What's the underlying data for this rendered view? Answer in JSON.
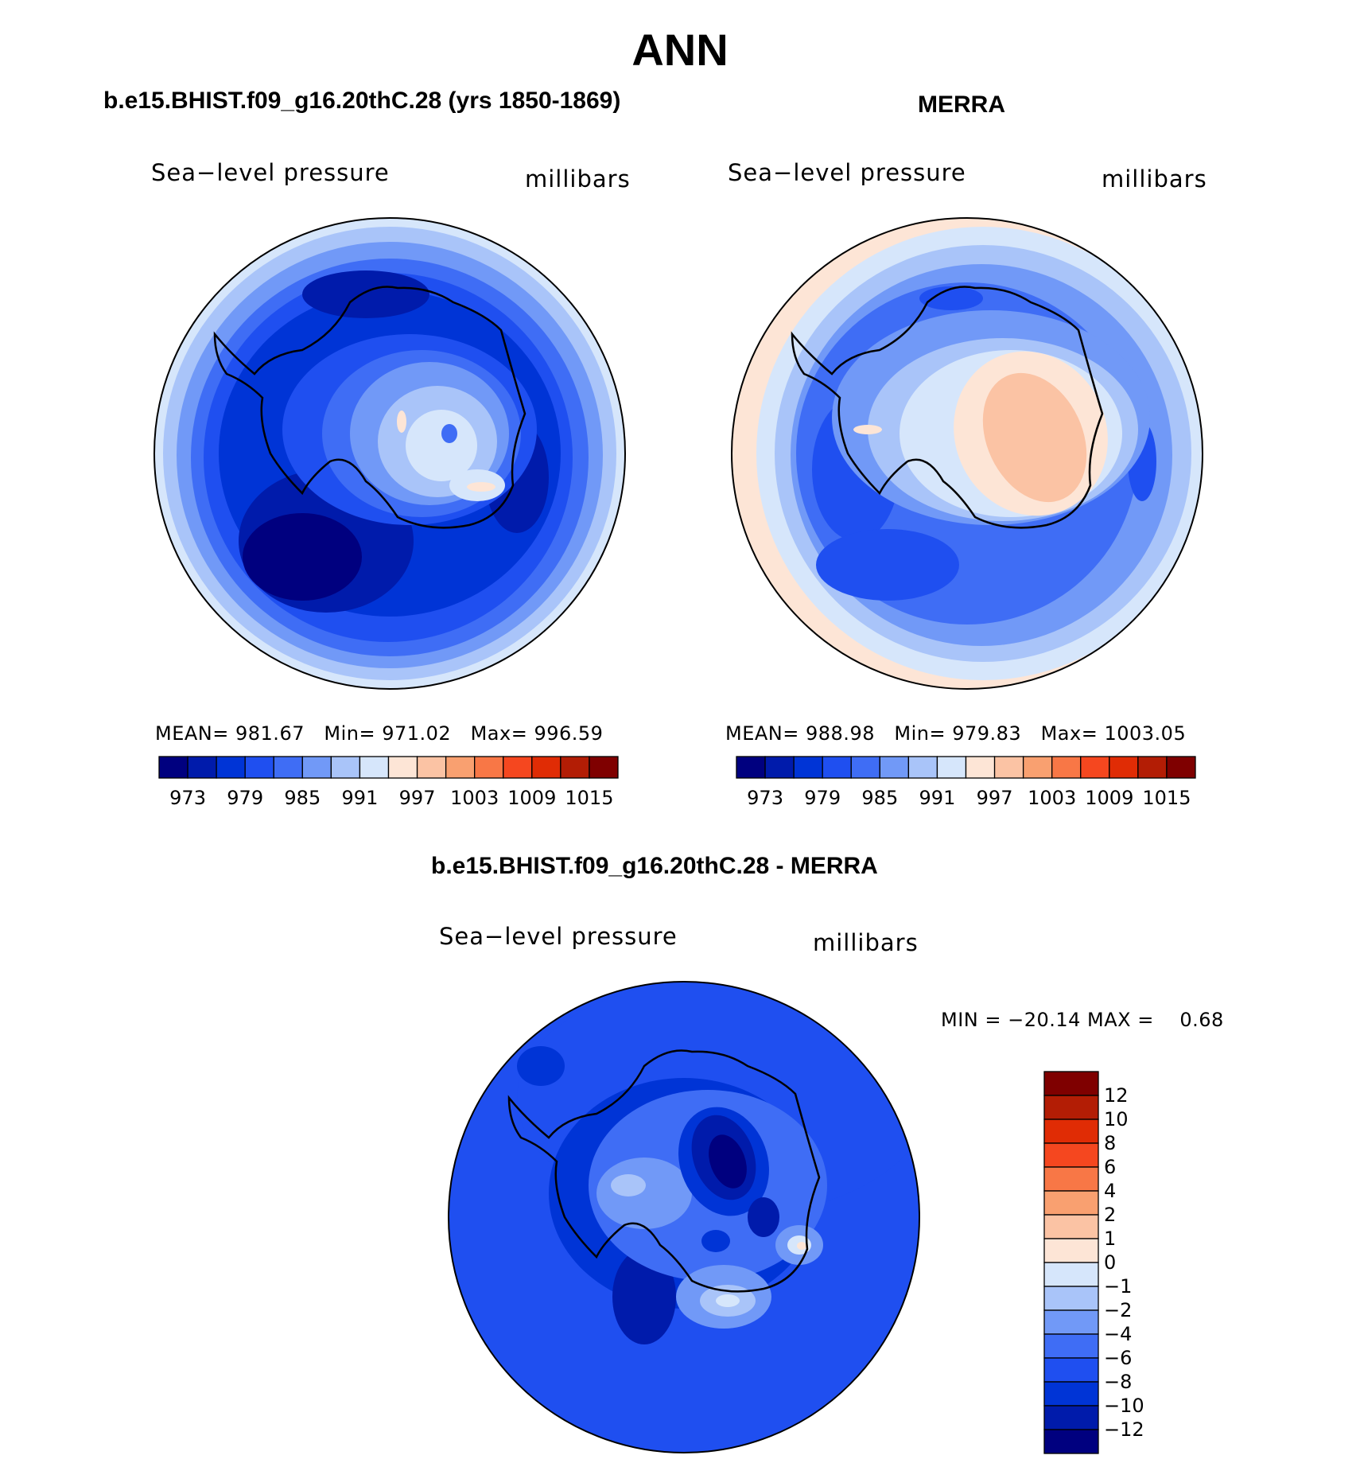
{
  "page_title": "ANN",
  "panels": [
    {
      "title": "b.e15.BHIST.f09_g16.20thC.28 (yrs 1850-1869)",
      "left_label": "Sea−level pressure",
      "right_label": "millibars",
      "stats": {
        "mean_label": "MEAN=",
        "mean": "981.67",
        "min_label": "Min=",
        "min": "971.02",
        "max_label": "Max=",
        "max": "996.59"
      },
      "colorbar_ticks": [
        "973",
        "979",
        "985",
        "991",
        "997",
        "1003",
        "1009",
        "1015"
      ]
    },
    {
      "title": "MERRA",
      "left_label": "Sea−level pressure",
      "right_label": "millibars",
      "stats": {
        "mean_label": "MEAN=",
        "mean": "988.98",
        "min_label": "Min=",
        "min": "979.83",
        "max_label": "Max=",
        "max": "1003.05"
      },
      "colorbar_ticks": [
        "973",
        "979",
        "985",
        "991",
        "997",
        "1003",
        "1009",
        "1015"
      ]
    },
    {
      "title": "b.e15.BHIST.f09_g16.20thC.28 - MERRA",
      "left_label": "Sea−level pressure",
      "right_label": "millibars",
      "minmax_text": "MIN = −20.14 MAX =    0.68",
      "colorbar_ticks": [
        "12",
        "10",
        "8",
        "6",
        "4",
        "2",
        "1",
        "0",
        "−1",
        "−2",
        "−4",
        "−6",
        "−8",
        "−10",
        "−12"
      ]
    }
  ],
  "colors": {
    "abs_scale": [
      "#00007f",
      "#001bab",
      "#0034d6",
      "#1f4ff0",
      "#3f6df5",
      "#7199f7",
      "#a9c4f9",
      "#d6e6fb",
      "#fde5d6",
      "#fbc3a4",
      "#f9a070",
      "#f87746",
      "#f5471f",
      "#e02c05",
      "#b31d05",
      "#7f0000"
    ],
    "diff_scale": [
      "#7f0000",
      "#b31d05",
      "#e02c05",
      "#f5471f",
      "#f87746",
      "#f9a070",
      "#fbc3a4",
      "#fde5d6",
      "#d6e6fb",
      "#a9c4f9",
      "#7199f7",
      "#3f6df5",
      "#1f4ff0",
      "#0034d6",
      "#001bab",
      "#00007f"
    ]
  }
}
